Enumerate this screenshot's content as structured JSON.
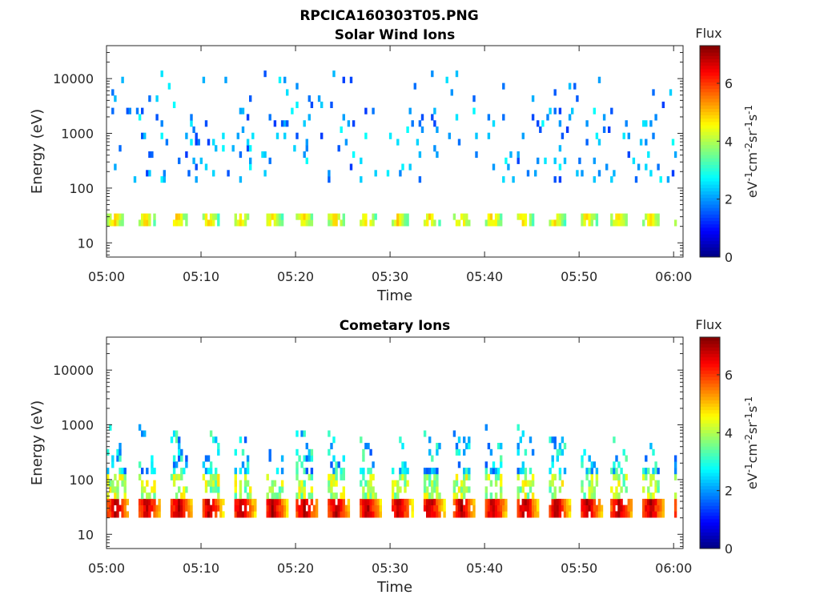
{
  "figure_title": "RPCICA160303T05.PNG",
  "chart_data": [
    {
      "type": "heatmap",
      "title": "Solar Wind Ions",
      "xlabel": "Time",
      "ylabel": "Energy (eV)",
      "x_ticks": [
        "05:00",
        "05:10",
        "05:20",
        "05:30",
        "05:40",
        "05:50",
        "06:00"
      ],
      "x_range_minutes": [
        0,
        61
      ],
      "y_scale": "log",
      "y_ticks": [
        10,
        100,
        1000,
        10000
      ],
      "y_tick_labels": [
        "10",
        "100",
        "1000",
        "10000"
      ],
      "y_range": [
        5.5,
        40000
      ],
      "colorbar": {
        "label": "Flux",
        "unit": "eV-1cm-2sr-1s-1",
        "range": [
          0,
          7.3
        ],
        "ticks": [
          "0",
          "2",
          "4",
          "6"
        ]
      },
      "colormap": "jet",
      "bands": [
        {
          "name": "low-energy band",
          "e_min": 22,
          "e_max": 38,
          "level_min": 3.2,
          "level_max": 4.9,
          "period_min": 3.33,
          "duty": 0.55
        },
        {
          "name": "scattered high-energy counts",
          "e_min": 120,
          "e_max": 15000,
          "level_min": 1.3,
          "level_max": 2.8
        }
      ]
    },
    {
      "type": "heatmap",
      "title": "Cometary Ions",
      "xlabel": "Time",
      "ylabel": "Energy (eV)",
      "x_ticks": [
        "05:00",
        "05:10",
        "05:20",
        "05:30",
        "05:40",
        "05:50",
        "06:00"
      ],
      "x_range_minutes": [
        0,
        61
      ],
      "y_scale": "log",
      "y_ticks": [
        10,
        100,
        1000,
        10000
      ],
      "y_tick_labels": [
        "10",
        "100",
        "1000",
        "10000"
      ],
      "y_range": [
        5.5,
        40000
      ],
      "colorbar": {
        "label": "Flux",
        "unit": "eV-1cm-2sr-1s-1",
        "range": [
          0,
          7.3
        ],
        "ticks": [
          "0",
          "2",
          "4",
          "6"
        ]
      },
      "colormap": "jet",
      "bands": [
        {
          "name": "low-energy band",
          "e_min": 18,
          "e_max": 42,
          "level_min": 4.8,
          "level_max": 7.0,
          "period_min": 3.33,
          "duty": 0.7
        },
        {
          "name": "periodic plumes",
          "e_min": 45,
          "e_max": 1000,
          "level_min": 1.5,
          "level_max": 4.8,
          "period_min": 3.33
        }
      ]
    }
  ]
}
